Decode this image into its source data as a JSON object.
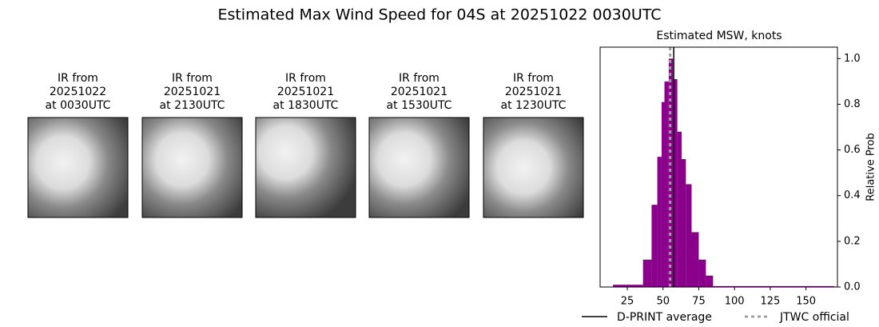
{
  "title": "Estimated Max Wind Speed for 04S at 20251022 0030UTC",
  "panels": [
    {
      "lines": [
        "IR from",
        "20251022",
        "at 0030UTC"
      ]
    },
    {
      "lines": [
        "IR from",
        "20251021",
        "at 2130UTC"
      ]
    },
    {
      "lines": [
        "IR from",
        "20251021",
        "at 1830UTC"
      ]
    },
    {
      "lines": [
        "IR from",
        "20251021",
        "at 1530UTC"
      ]
    },
    {
      "lines": [
        "IR from",
        "20251021",
        "at 1230UTC"
      ]
    }
  ],
  "chart_data": {
    "type": "histogram",
    "title": "Estimated MSW, knots",
    "y_label": "Relative Prob",
    "bins": [
      15,
      36,
      42,
      46,
      49,
      51,
      54,
      57,
      60,
      63,
      66,
      70,
      75,
      80,
      85,
      170
    ],
    "values": [
      0.01,
      0.12,
      0.36,
      0.57,
      0.81,
      0.9,
      1.0,
      0.91,
      0.68,
      0.56,
      0.45,
      0.24,
      0.12,
      0.05,
      0.004
    ],
    "color": "#8b008b",
    "xlim": [
      6,
      172
    ],
    "ylim": [
      0,
      1.05
    ],
    "xticks": [
      25,
      50,
      75,
      100,
      125,
      150
    ],
    "yticks": [
      {
        "value": 0,
        "label": "0.0"
      },
      {
        "value": 0.2,
        "label": "0.2"
      },
      {
        "value": 0.4,
        "label": "0.4"
      },
      {
        "value": 0.6,
        "label": "0.6"
      },
      {
        "value": 0.8,
        "label": "0.8"
      },
      {
        "value": 1,
        "label": "1.0"
      }
    ],
    "lines": [
      {
        "name": "D-PRINT average",
        "value": 57.5,
        "color": "#000000",
        "style": "solid"
      },
      {
        "name": "JTWC official",
        "value": 55,
        "color": "#a0a0a0",
        "style": "dotted"
      }
    ]
  }
}
